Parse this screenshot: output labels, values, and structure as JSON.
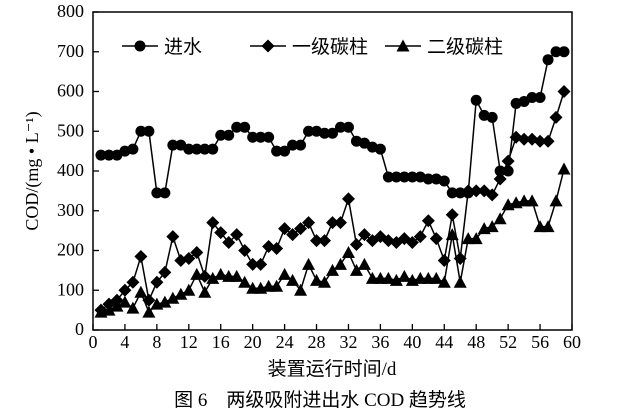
{
  "chart_data": {
    "type": "line",
    "xlabel": "装置运行时间/d",
    "ylabel": "COD/(mg • L⁻¹)",
    "caption": "图 6　两级吸附进出水 COD 趋势线",
    "xlim": [
      0,
      60
    ],
    "ylim": [
      0,
      800
    ],
    "xticks": [
      0,
      4,
      8,
      12,
      16,
      20,
      24,
      28,
      32,
      36,
      40,
      44,
      48,
      52,
      56,
      60
    ],
    "yticks": [
      0,
      100,
      200,
      300,
      400,
      500,
      600,
      700,
      800
    ],
    "grid": false,
    "legend_position": "top",
    "x": [
      1,
      2,
      3,
      4,
      5,
      6,
      7,
      8,
      9,
      10,
      11,
      12,
      13,
      14,
      15,
      16,
      17,
      18,
      19,
      20,
      21,
      22,
      23,
      24,
      25,
      26,
      27,
      28,
      29,
      30,
      31,
      32,
      33,
      34,
      35,
      36,
      37,
      38,
      39,
      40,
      41,
      42,
      43,
      44,
      45,
      46,
      47,
      48,
      49,
      50,
      51,
      52,
      53,
      54,
      55,
      56,
      57,
      58,
      59
    ],
    "series": [
      {
        "name": "进水",
        "marker": "circle",
        "values": [
          440,
          440,
          440,
          450,
          455,
          500,
          500,
          345,
          345,
          465,
          465,
          455,
          455,
          455,
          455,
          490,
          490,
          510,
          510,
          485,
          485,
          485,
          450,
          450,
          465,
          465,
          500,
          500,
          495,
          495,
          510,
          510,
          475,
          470,
          460,
          455,
          385,
          385,
          385,
          385,
          385,
          380,
          380,
          375,
          345,
          345,
          345,
          578,
          540,
          535,
          400,
          400,
          570,
          575,
          585,
          585,
          680,
          700,
          700
        ]
      },
      {
        "name": "一级碳柱",
        "marker": "diamond",
        "values": [
          50,
          65,
          75,
          100,
          120,
          185,
          75,
          120,
          145,
          235,
          175,
          180,
          195,
          135,
          270,
          245,
          220,
          240,
          200,
          165,
          165,
          210,
          205,
          255,
          240,
          255,
          270,
          225,
          225,
          270,
          270,
          330,
          215,
          240,
          225,
          235,
          225,
          220,
          230,
          220,
          235,
          275,
          230,
          175,
          290,
          180,
          350,
          350,
          350,
          340,
          380,
          425,
          485,
          480,
          480,
          475,
          475,
          535,
          600
        ]
      },
      {
        "name": "二级碳柱",
        "marker": "triangle",
        "values": [
          45,
          50,
          60,
          70,
          55,
          95,
          45,
          65,
          70,
          80,
          90,
          100,
          140,
          95,
          130,
          140,
          135,
          135,
          120,
          105,
          105,
          110,
          110,
          140,
          125,
          100,
          165,
          125,
          120,
          150,
          165,
          195,
          150,
          165,
          130,
          130,
          130,
          125,
          135,
          125,
          130,
          130,
          130,
          120,
          240,
          120,
          230,
          230,
          255,
          260,
          280,
          315,
          320,
          325,
          325,
          260,
          260,
          325,
          405
        ]
      }
    ]
  }
}
